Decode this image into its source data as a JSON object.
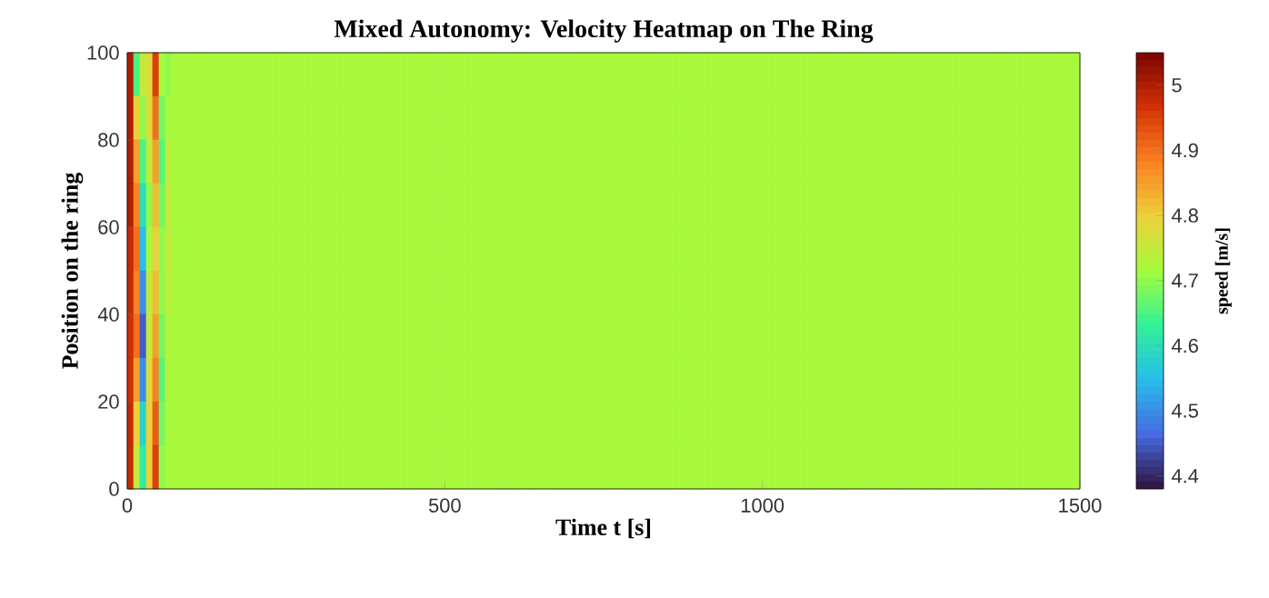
{
  "chart_data": {
    "type": "heatmap",
    "title": "Mixed Autonomy: Velocity Heatmap on The Ring",
    "xlabel": "Time t [s]",
    "ylabel": "Position on the ring",
    "clabel": "speed [m/s]",
    "x": [
      5,
      15,
      25,
      35,
      45,
      55,
      65,
      75,
      85,
      95,
      105,
      115,
      125,
      135,
      145,
      155,
      165,
      175,
      185,
      195,
      205,
      215,
      225,
      235,
      245,
      255,
      265,
      275,
      285,
      295,
      305,
      315,
      325,
      335,
      345,
      355,
      365,
      375,
      385,
      395,
      405,
      415,
      425,
      435,
      445,
      455,
      465,
      475,
      485,
      495,
      505,
      515,
      525,
      535,
      545,
      555,
      565,
      575,
      585,
      595,
      605,
      615,
      625,
      635,
      645,
      655,
      665,
      675,
      685,
      695,
      705,
      715,
      725,
      735,
      745,
      755,
      765,
      775,
      785,
      795,
      805,
      815,
      825,
      835,
      845,
      855,
      865,
      875,
      885,
      895,
      905,
      915,
      925,
      935,
      945,
      955,
      965,
      975,
      985,
      995,
      1005,
      1015,
      1025,
      1035,
      1045,
      1055,
      1065,
      1075,
      1085,
      1095,
      1105,
      1115,
      1125,
      1135,
      1145,
      1155,
      1165,
      1175,
      1185,
      1195,
      1205,
      1215,
      1225,
      1235,
      1245,
      1255,
      1265,
      1275,
      1285,
      1295,
      1305,
      1315,
      1325,
      1335,
      1345,
      1355,
      1365,
      1375,
      1385,
      1395,
      1405,
      1415,
      1425,
      1435,
      1445,
      1455,
      1465,
      1475,
      1485,
      1495
    ],
    "y": [
      95,
      85,
      75,
      65,
      55,
      45,
      35,
      25,
      15,
      5
    ],
    "cells": [
      [
        5.0,
        4.65,
        4.75,
        4.78,
        4.95,
        4.72,
        4.7,
        4.72,
        4.72,
        4.72,
        4.72,
        4.72,
        4.72,
        4.72,
        4.72,
        4.72,
        4.72,
        4.72,
        4.72,
        4.72,
        4.72,
        4.72,
        4.72,
        4.72,
        4.72,
        4.72,
        4.72,
        4.72,
        4.72,
        4.72,
        4.72,
        4.72,
        4.72,
        4.72,
        4.72,
        4.72,
        4.72,
        4.72,
        4.72,
        4.72,
        4.72,
        4.72,
        4.72,
        4.72,
        4.72,
        4.72,
        4.72,
        4.72,
        4.72,
        4.72,
        4.72,
        4.72,
        4.72,
        4.72,
        4.72,
        4.72,
        4.72,
        4.72,
        4.72,
        4.72,
        4.72,
        4.72,
        4.72,
        4.72,
        4.72,
        4.72,
        4.72,
        4.72,
        4.72,
        4.72,
        4.72,
        4.72,
        4.72,
        4.72,
        4.72,
        4.72,
        4.72,
        4.72,
        4.72,
        4.72,
        4.72,
        4.72,
        4.72,
        4.72,
        4.72,
        4.72,
        4.72,
        4.72,
        4.72,
        4.72,
        4.72,
        4.72,
        4.72,
        4.72,
        4.72,
        4.72,
        4.72,
        4.72,
        4.72,
        4.72,
        4.72,
        4.72,
        4.72,
        4.72,
        4.72,
        4.72,
        4.72,
        4.72,
        4.72,
        4.72,
        4.72,
        4.72,
        4.72,
        4.72,
        4.72,
        4.72,
        4.72,
        4.72,
        4.72,
        4.72,
        4.72,
        4.72,
        4.72,
        4.72,
        4.72,
        4.72,
        4.72,
        4.72,
        4.72,
        4.72,
        4.72,
        4.72,
        4.72,
        4.72,
        4.72,
        4.72,
        4.72,
        4.72,
        4.72,
        4.72,
        4.72,
        4.72,
        4.72,
        4.72,
        4.72,
        4.72,
        4.72,
        4.72,
        4.72,
        4.72
      ],
      [
        5.0,
        4.8,
        4.7,
        4.78,
        4.9,
        4.68,
        4.72,
        4.72,
        4.72,
        4.72,
        4.72,
        4.72,
        4.72,
        4.72,
        4.72,
        4.72,
        4.72,
        4.72,
        4.72,
        4.72,
        4.72,
        4.72,
        4.72,
        4.72,
        4.72,
        4.72,
        4.72,
        4.72,
        4.72,
        4.72,
        4.72,
        4.72,
        4.72,
        4.72,
        4.72,
        4.72,
        4.72,
        4.72,
        4.72,
        4.72,
        4.72,
        4.72,
        4.72,
        4.72,
        4.72,
        4.72,
        4.72,
        4.72,
        4.72,
        4.72,
        4.72,
        4.72,
        4.72,
        4.72,
        4.72,
        4.72,
        4.72,
        4.72,
        4.72,
        4.72,
        4.72,
        4.72,
        4.72,
        4.72,
        4.72,
        4.72,
        4.72,
        4.72,
        4.72,
        4.72,
        4.72,
        4.72,
        4.72,
        4.72,
        4.72,
        4.72,
        4.72,
        4.72,
        4.72,
        4.72,
        4.72,
        4.72,
        4.72,
        4.72,
        4.72,
        4.72,
        4.72,
        4.72,
        4.72,
        4.72,
        4.72,
        4.72,
        4.72,
        4.72,
        4.72,
        4.72,
        4.72,
        4.72,
        4.72,
        4.72,
        4.72,
        4.72,
        4.72,
        4.72,
        4.72,
        4.72,
        4.72,
        4.72,
        4.72,
        4.72,
        4.72,
        4.72,
        4.72,
        4.72,
        4.72,
        4.72,
        4.72,
        4.72,
        4.72,
        4.72,
        4.72,
        4.72,
        4.72,
        4.72,
        4.72,
        4.72,
        4.72,
        4.72,
        4.72,
        4.72,
        4.72,
        4.72,
        4.72,
        4.72,
        4.72,
        4.72,
        4.72,
        4.72,
        4.72,
        4.72,
        4.72,
        4.72,
        4.72,
        4.72,
        4.72,
        4.72,
        4.72,
        4.72,
        4.72,
        4.72
      ],
      [
        5.0,
        4.85,
        4.65,
        4.75,
        4.85,
        4.66,
        4.74,
        4.72,
        4.72,
        4.72,
        4.72,
        4.72,
        4.72,
        4.72,
        4.72,
        4.72,
        4.72,
        4.72,
        4.72,
        4.72,
        4.72,
        4.72,
        4.72,
        4.72,
        4.72,
        4.72,
        4.72,
        4.72,
        4.72,
        4.72,
        4.72,
        4.72,
        4.72,
        4.72,
        4.72,
        4.72,
        4.72,
        4.72,
        4.72,
        4.72,
        4.72,
        4.72,
        4.72,
        4.72,
        4.72,
        4.72,
        4.72,
        4.72,
        4.72,
        4.72,
        4.72,
        4.72,
        4.72,
        4.72,
        4.72,
        4.72,
        4.72,
        4.72,
        4.72,
        4.72,
        4.72,
        4.72,
        4.72,
        4.72,
        4.72,
        4.72,
        4.72,
        4.72,
        4.72,
        4.72,
        4.72,
        4.72,
        4.72,
        4.72,
        4.72,
        4.72,
        4.72,
        4.72,
        4.72,
        4.72,
        4.72,
        4.72,
        4.72,
        4.72,
        4.72,
        4.72,
        4.72,
        4.72,
        4.72,
        4.72,
        4.72,
        4.72,
        4.72,
        4.72,
        4.72,
        4.72,
        4.72,
        4.72,
        4.72,
        4.72,
        4.72,
        4.72,
        4.72,
        4.72,
        4.72,
        4.72,
        4.72,
        4.72,
        4.72,
        4.72,
        4.72,
        4.72,
        4.72,
        4.72,
        4.72,
        4.72,
        4.72,
        4.72,
        4.72,
        4.72,
        4.72,
        4.72,
        4.72,
        4.72,
        4.72,
        4.72,
        4.72,
        4.72,
        4.72,
        4.72,
        4.72,
        4.72,
        4.72,
        4.72,
        4.72,
        4.72,
        4.72,
        4.72,
        4.72,
        4.72,
        4.72,
        4.72,
        4.72,
        4.72,
        4.72,
        4.72,
        4.72,
        4.72,
        4.72,
        4.72
      ],
      [
        5.0,
        4.88,
        4.6,
        4.7,
        4.82,
        4.68,
        4.75,
        4.72,
        4.72,
        4.72,
        4.72,
        4.72,
        4.72,
        4.72,
        4.72,
        4.72,
        4.72,
        4.72,
        4.72,
        4.72,
        4.72,
        4.72,
        4.72,
        4.72,
        4.72,
        4.72,
        4.72,
        4.72,
        4.72,
        4.72,
        4.72,
        4.72,
        4.72,
        4.72,
        4.72,
        4.72,
        4.72,
        4.72,
        4.72,
        4.72,
        4.72,
        4.72,
        4.72,
        4.72,
        4.72,
        4.72,
        4.72,
        4.72,
        4.72,
        4.72,
        4.72,
        4.72,
        4.72,
        4.72,
        4.72,
        4.72,
        4.72,
        4.72,
        4.72,
        4.72,
        4.72,
        4.72,
        4.72,
        4.72,
        4.72,
        4.72,
        4.72,
        4.72,
        4.72,
        4.72,
        4.72,
        4.72,
        4.72,
        4.72,
        4.72,
        4.72,
        4.72,
        4.72,
        4.72,
        4.72,
        4.72,
        4.72,
        4.72,
        4.72,
        4.72,
        4.72,
        4.72,
        4.72,
        4.72,
        4.72,
        4.72,
        4.72,
        4.72,
        4.72,
        4.72,
        4.72,
        4.72,
        4.72,
        4.72,
        4.72,
        4.72,
        4.72,
        4.72,
        4.72,
        4.72,
        4.72,
        4.72,
        4.72,
        4.72,
        4.72,
        4.72,
        4.72,
        4.72,
        4.72,
        4.72,
        4.72,
        4.72,
        4.72,
        4.72,
        4.72,
        4.72,
        4.72,
        4.72,
        4.72,
        4.72,
        4.72,
        4.72,
        4.72,
        4.72,
        4.72,
        4.72,
        4.72,
        4.72,
        4.72,
        4.72,
        4.72,
        4.72,
        4.72,
        4.72,
        4.72,
        4.72,
        4.72,
        4.72,
        4.72,
        4.72,
        4.72,
        4.72,
        4.72,
        4.72,
        4.72
      ],
      [
        4.98,
        4.9,
        4.55,
        4.72,
        4.8,
        4.7,
        4.75,
        4.72,
        4.72,
        4.72,
        4.72,
        4.72,
        4.72,
        4.72,
        4.72,
        4.72,
        4.72,
        4.72,
        4.72,
        4.72,
        4.72,
        4.72,
        4.72,
        4.72,
        4.72,
        4.72,
        4.72,
        4.72,
        4.72,
        4.72,
        4.72,
        4.72,
        4.72,
        4.72,
        4.72,
        4.72,
        4.72,
        4.72,
        4.72,
        4.72,
        4.72,
        4.72,
        4.72,
        4.72,
        4.72,
        4.72,
        4.72,
        4.72,
        4.72,
        4.72,
        4.72,
        4.72,
        4.72,
        4.72,
        4.72,
        4.72,
        4.72,
        4.72,
        4.72,
        4.72,
        4.72,
        4.72,
        4.72,
        4.72,
        4.72,
        4.72,
        4.72,
        4.72,
        4.72,
        4.72,
        4.72,
        4.72,
        4.72,
        4.72,
        4.72,
        4.72,
        4.72,
        4.72,
        4.72,
        4.72,
        4.72,
        4.72,
        4.72,
        4.72,
        4.72,
        4.72,
        4.72,
        4.72,
        4.72,
        4.72,
        4.72,
        4.72,
        4.72,
        4.72,
        4.72,
        4.72,
        4.72,
        4.72,
        4.72,
        4.72,
        4.72,
        4.72,
        4.72,
        4.72,
        4.72,
        4.72,
        4.72,
        4.72,
        4.72,
        4.72,
        4.72,
        4.72,
        4.72,
        4.72,
        4.72,
        4.72,
        4.72,
        4.72,
        4.72,
        4.72,
        4.72,
        4.72,
        4.72,
        4.72,
        4.72,
        4.72,
        4.72,
        4.72,
        4.72,
        4.72,
        4.72,
        4.72,
        4.72,
        4.72,
        4.72,
        4.72,
        4.72,
        4.72,
        4.72,
        4.72,
        4.72,
        4.72,
        4.72,
        4.72,
        4.72,
        4.72,
        4.72,
        4.72,
        4.72,
        4.72
      ],
      [
        4.98,
        4.88,
        4.5,
        4.75,
        4.82,
        4.7,
        4.74,
        4.72,
        4.72,
        4.72,
        4.72,
        4.72,
        4.72,
        4.72,
        4.72,
        4.72,
        4.72,
        4.72,
        4.72,
        4.72,
        4.72,
        4.72,
        4.72,
        4.72,
        4.72,
        4.72,
        4.72,
        4.72,
        4.72,
        4.72,
        4.72,
        4.72,
        4.72,
        4.72,
        4.72,
        4.72,
        4.72,
        4.72,
        4.72,
        4.72,
        4.72,
        4.72,
        4.72,
        4.72,
        4.72,
        4.72,
        4.72,
        4.72,
        4.72,
        4.72,
        4.72,
        4.72,
        4.72,
        4.72,
        4.72,
        4.72,
        4.72,
        4.72,
        4.72,
        4.72,
        4.72,
        4.72,
        4.72,
        4.72,
        4.72,
        4.72,
        4.72,
        4.72,
        4.72,
        4.72,
        4.72,
        4.72,
        4.72,
        4.72,
        4.72,
        4.72,
        4.72,
        4.72,
        4.72,
        4.72,
        4.72,
        4.72,
        4.72,
        4.72,
        4.72,
        4.72,
        4.72,
        4.72,
        4.72,
        4.72,
        4.72,
        4.72,
        4.72,
        4.72,
        4.72,
        4.72,
        4.72,
        4.72,
        4.72,
        4.72,
        4.72,
        4.72,
        4.72,
        4.72,
        4.72,
        4.72,
        4.72,
        4.72,
        4.72,
        4.72,
        4.72,
        4.72,
        4.72,
        4.72,
        4.72,
        4.72,
        4.72,
        4.72,
        4.72,
        4.72,
        4.72,
        4.72,
        4.72,
        4.72,
        4.72,
        4.72,
        4.72,
        4.72,
        4.72,
        4.72,
        4.72,
        4.72,
        4.72,
        4.72,
        4.72,
        4.72,
        4.72,
        4.72,
        4.72,
        4.72,
        4.72,
        4.72,
        4.72,
        4.72,
        4.72,
        4.72,
        4.72,
        4.72,
        4.72,
        4.72
      ],
      [
        4.97,
        4.9,
        4.45,
        4.75,
        4.85,
        4.68,
        4.73,
        4.72,
        4.72,
        4.72,
        4.72,
        4.72,
        4.72,
        4.72,
        4.72,
        4.72,
        4.72,
        4.72,
        4.72,
        4.72,
        4.72,
        4.72,
        4.72,
        4.72,
        4.72,
        4.72,
        4.72,
        4.72,
        4.72,
        4.72,
        4.72,
        4.72,
        4.72,
        4.72,
        4.72,
        4.72,
        4.72,
        4.72,
        4.72,
        4.72,
        4.72,
        4.72,
        4.72,
        4.72,
        4.72,
        4.72,
        4.72,
        4.72,
        4.72,
        4.72,
        4.72,
        4.72,
        4.72,
        4.72,
        4.72,
        4.72,
        4.72,
        4.72,
        4.72,
        4.72,
        4.72,
        4.72,
        4.72,
        4.72,
        4.72,
        4.72,
        4.72,
        4.72,
        4.72,
        4.72,
        4.72,
        4.72,
        4.72,
        4.72,
        4.72,
        4.72,
        4.72,
        4.72,
        4.72,
        4.72,
        4.72,
        4.72,
        4.72,
        4.72,
        4.72,
        4.72,
        4.72,
        4.72,
        4.72,
        4.72,
        4.72,
        4.72,
        4.72,
        4.72,
        4.72,
        4.72,
        4.72,
        4.72,
        4.72,
        4.72,
        4.72,
        4.72,
        4.72,
        4.72,
        4.72,
        4.72,
        4.72,
        4.72,
        4.72,
        4.72,
        4.72,
        4.72,
        4.72,
        4.72,
        4.72,
        4.72,
        4.72,
        4.72,
        4.72,
        4.72,
        4.72,
        4.72,
        4.72,
        4.72,
        4.72,
        4.72,
        4.72,
        4.72,
        4.72,
        4.72,
        4.72,
        4.72,
        4.72,
        4.72,
        4.72,
        4.72,
        4.72,
        4.72,
        4.72,
        4.72,
        4.72,
        4.72,
        4.72,
        4.72,
        4.72,
        4.72,
        4.72,
        4.72,
        4.72,
        4.72
      ],
      [
        4.97,
        4.85,
        4.5,
        4.78,
        4.88,
        4.66,
        4.73,
        4.72,
        4.72,
        4.72,
        4.72,
        4.72,
        4.72,
        4.72,
        4.72,
        4.72,
        4.72,
        4.72,
        4.72,
        4.72,
        4.72,
        4.72,
        4.72,
        4.72,
        4.72,
        4.72,
        4.72,
        4.72,
        4.72,
        4.72,
        4.72,
        4.72,
        4.72,
        4.72,
        4.72,
        4.72,
        4.72,
        4.72,
        4.72,
        4.72,
        4.72,
        4.72,
        4.72,
        4.72,
        4.72,
        4.72,
        4.72,
        4.72,
        4.72,
        4.72,
        4.72,
        4.72,
        4.72,
        4.72,
        4.72,
        4.72,
        4.72,
        4.72,
        4.72,
        4.72,
        4.72,
        4.72,
        4.72,
        4.72,
        4.72,
        4.72,
        4.72,
        4.72,
        4.72,
        4.72,
        4.72,
        4.72,
        4.72,
        4.72,
        4.72,
        4.72,
        4.72,
        4.72,
        4.72,
        4.72,
        4.72,
        4.72,
        4.72,
        4.72,
        4.72,
        4.72,
        4.72,
        4.72,
        4.72,
        4.72,
        4.72,
        4.72,
        4.72,
        4.72,
        4.72,
        4.72,
        4.72,
        4.72,
        4.72,
        4.72,
        4.72,
        4.72,
        4.72,
        4.72,
        4.72,
        4.72,
        4.72,
        4.72,
        4.72,
        4.72,
        4.72,
        4.72,
        4.72,
        4.72,
        4.72,
        4.72,
        4.72,
        4.72,
        4.72,
        4.72,
        4.72,
        4.72,
        4.72,
        4.72,
        4.72,
        4.72,
        4.72,
        4.72,
        4.72,
        4.72,
        4.72,
        4.72,
        4.72,
        4.72,
        4.72,
        4.72,
        4.72,
        4.72,
        4.72,
        4.72,
        4.72,
        4.72,
        4.72,
        4.72,
        4.72,
        4.72,
        4.72,
        4.72,
        4.72,
        4.72
      ],
      [
        4.98,
        4.8,
        4.58,
        4.8,
        4.92,
        4.68,
        4.72,
        4.72,
        4.72,
        4.72,
        4.72,
        4.72,
        4.72,
        4.72,
        4.72,
        4.72,
        4.72,
        4.72,
        4.72,
        4.72,
        4.72,
        4.72,
        4.72,
        4.72,
        4.72,
        4.72,
        4.72,
        4.72,
        4.72,
        4.72,
        4.72,
        4.72,
        4.72,
        4.72,
        4.72,
        4.72,
        4.72,
        4.72,
        4.72,
        4.72,
        4.72,
        4.72,
        4.72,
        4.72,
        4.72,
        4.72,
        4.72,
        4.72,
        4.72,
        4.72,
        4.72,
        4.72,
        4.72,
        4.72,
        4.72,
        4.72,
        4.72,
        4.72,
        4.72,
        4.72,
        4.72,
        4.72,
        4.72,
        4.72,
        4.72,
        4.72,
        4.72,
        4.72,
        4.72,
        4.72,
        4.72,
        4.72,
        4.72,
        4.72,
        4.72,
        4.72,
        4.72,
        4.72,
        4.72,
        4.72,
        4.72,
        4.72,
        4.72,
        4.72,
        4.72,
        4.72,
        4.72,
        4.72,
        4.72,
        4.72,
        4.72,
        4.72,
        4.72,
        4.72,
        4.72,
        4.72,
        4.72,
        4.72,
        4.72,
        4.72,
        4.72,
        4.72,
        4.72,
        4.72,
        4.72,
        4.72,
        4.72,
        4.72,
        4.72,
        4.72,
        4.72,
        4.72,
        4.72,
        4.72,
        4.72,
        4.72,
        4.72,
        4.72,
        4.72,
        4.72,
        4.72,
        4.72,
        4.72,
        4.72,
        4.72,
        4.72,
        4.72,
        4.72,
        4.72,
        4.72,
        4.72,
        4.72,
        4.72,
        4.72,
        4.72,
        4.72,
        4.72,
        4.72,
        4.72,
        4.72,
        4.72,
        4.72,
        4.72,
        4.72,
        4.72,
        4.72,
        4.72,
        4.72,
        4.72,
        4.72
      ],
      [
        4.98,
        4.75,
        4.62,
        4.8,
        4.95,
        4.7,
        4.72,
        4.72,
        4.72,
        4.72,
        4.72,
        4.72,
        4.72,
        4.72,
        4.72,
        4.72,
        4.72,
        4.72,
        4.72,
        4.72,
        4.72,
        4.72,
        4.72,
        4.72,
        4.72,
        4.72,
        4.72,
        4.72,
        4.72,
        4.72,
        4.72,
        4.72,
        4.72,
        4.72,
        4.72,
        4.72,
        4.72,
        4.72,
        4.72,
        4.72,
        4.72,
        4.72,
        4.72,
        4.72,
        4.72,
        4.72,
        4.72,
        4.72,
        4.72,
        4.72,
        4.72,
        4.72,
        4.72,
        4.72,
        4.72,
        4.72,
        4.72,
        4.72,
        4.72,
        4.72,
        4.72,
        4.72,
        4.72,
        4.72,
        4.72,
        4.72,
        4.72,
        4.72,
        4.72,
        4.72,
        4.72,
        4.72,
        4.72,
        4.72,
        4.72,
        4.72,
        4.72,
        4.72,
        4.72,
        4.72,
        4.72,
        4.72,
        4.72,
        4.72,
        4.72,
        4.72,
        4.72,
        4.72,
        4.72,
        4.72,
        4.72,
        4.72,
        4.72,
        4.72,
        4.72,
        4.72,
        4.72,
        4.72,
        4.72,
        4.72,
        4.72,
        4.72,
        4.72,
        4.72,
        4.72,
        4.72,
        4.72,
        4.72,
        4.72,
        4.72,
        4.72,
        4.72,
        4.72,
        4.72,
        4.72,
        4.72,
        4.72,
        4.72,
        4.72,
        4.72,
        4.72,
        4.72,
        4.72,
        4.72,
        4.72,
        4.72,
        4.72,
        4.72,
        4.72,
        4.72,
        4.72,
        4.72,
        4.72,
        4.72,
        4.72,
        4.72,
        4.72,
        4.72,
        4.72,
        4.72,
        4.72,
        4.72,
        4.72,
        4.72,
        4.72,
        4.72,
        4.72,
        4.72,
        4.72,
        4.72
      ]
    ],
    "xlim": [
      0,
      1500
    ],
    "ylim": [
      0,
      100
    ],
    "xticks": [
      0,
      500,
      1000,
      1500
    ],
    "yticks": [
      0,
      20,
      40,
      60,
      80,
      100
    ],
    "clim": [
      4.38,
      5.05
    ],
    "cticks": [
      4.4,
      4.5,
      4.6,
      4.7,
      4.8,
      4.9,
      5
    ]
  }
}
